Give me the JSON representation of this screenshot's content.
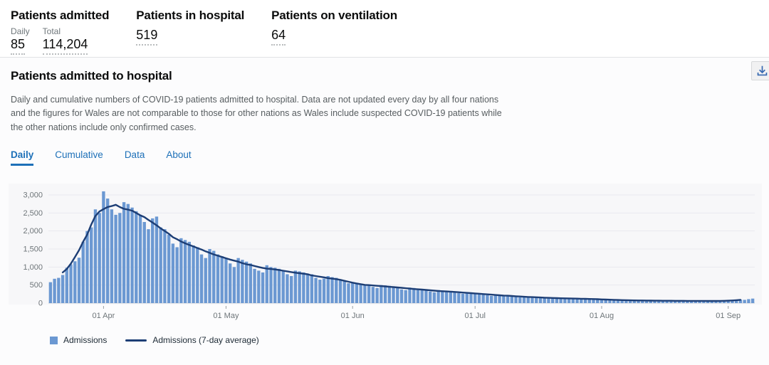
{
  "stats": {
    "admitted": {
      "title": "Patients admitted",
      "daily_label": "Daily",
      "daily_value": "85",
      "total_label": "Total",
      "total_value": "114,204"
    },
    "in_hospital": {
      "title": "Patients in hospital",
      "value": "519"
    },
    "ventilation": {
      "title": "Patients on ventilation",
      "value": "64"
    }
  },
  "card": {
    "title": "Patients admitted to hospital",
    "description": "Daily and cumulative numbers of COVID-19 patients admitted to hospital. Data are not updated every day by all four nations and the figures for Wales are not comparable to those for other nations as Wales include suspected COVID-19 patients while the other nations include only confirmed cases.",
    "download_icon": "download-icon"
  },
  "tabs": {
    "items": [
      {
        "label": "Daily",
        "active": true
      },
      {
        "label": "Cumulative",
        "active": false
      },
      {
        "label": "Data",
        "active": false
      },
      {
        "label": "About",
        "active": false
      }
    ]
  },
  "colors": {
    "accent": "#1d70b8",
    "bar": "#6b98d2",
    "line": "#1d3e75",
    "grid": "#e9e9ee",
    "axis_line": "#d2d6d9",
    "plot_bg": "#f7f7f9",
    "axis_text": "#6e7579"
  },
  "chart_data": {
    "type": "bar",
    "title": "Patients admitted to hospital — daily admissions",
    "x_start": "19 Mar 2020",
    "x_frequency": "daily",
    "x_tick_labels": [
      "01 Apr",
      "01 May",
      "01 Jun",
      "01 Jul",
      "01 Aug",
      "01 Sep"
    ],
    "x_tick_indices": [
      13,
      43,
      74,
      104,
      135,
      166
    ],
    "y_tick_labels": [
      "0",
      "500",
      "1,000",
      "1,500",
      "2,000",
      "2,500",
      "3,000"
    ],
    "y_tick_step": 500,
    "ylim": [
      0,
      3100
    ],
    "grid": "horizontal",
    "legend_position": "bottom",
    "series": [
      {
        "name": "Admissions",
        "type": "bar",
        "values": [
          580,
          675,
          700,
          780,
          980,
          1075,
          1160,
          1260,
          1700,
          2000,
          2100,
          2600,
          2500,
          3100,
          2900,
          2600,
          2450,
          2500,
          2800,
          2750,
          2650,
          2550,
          2450,
          2250,
          2050,
          2350,
          2400,
          2100,
          2050,
          1900,
          1650,
          1550,
          1800,
          1750,
          1700,
          1600,
          1550,
          1350,
          1250,
          1500,
          1450,
          1350,
          1300,
          1250,
          1100,
          1000,
          1250,
          1200,
          1150,
          1100,
          950,
          900,
          850,
          1050,
          1000,
          980,
          950,
          900,
          800,
          750,
          900,
          880,
          850,
          820,
          800,
          700,
          650,
          680,
          750,
          720,
          700,
          650,
          600,
          550,
          550,
          560,
          540,
          520,
          500,
          450,
          420,
          500,
          490,
          480,
          460,
          440,
          380,
          360,
          430,
          420,
          400,
          390,
          360,
          320,
          300,
          360,
          350,
          340,
          330,
          310,
          280,
          260,
          300,
          290,
          280,
          270,
          260,
          220,
          200,
          240,
          230,
          220,
          210,
          200,
          170,
          160,
          190,
          180,
          170,
          165,
          155,
          140,
          130,
          150,
          145,
          140,
          135,
          130,
          115,
          110,
          130,
          125,
          120,
          115,
          110,
          95,
          90,
          100,
          95,
          90,
          85,
          80,
          70,
          65,
          80,
          75,
          75,
          70,
          70,
          60,
          55,
          70,
          70,
          65,
          65,
          65,
          55,
          55,
          65,
          65,
          60,
          65,
          60,
          55,
          50,
          60,
          65,
          70,
          80,
          95,
          90,
          110,
          125
        ]
      },
      {
        "name": "Admissions (7-day average)",
        "type": "line",
        "derived": "7-day centered mean of the Admissions series"
      }
    ]
  }
}
